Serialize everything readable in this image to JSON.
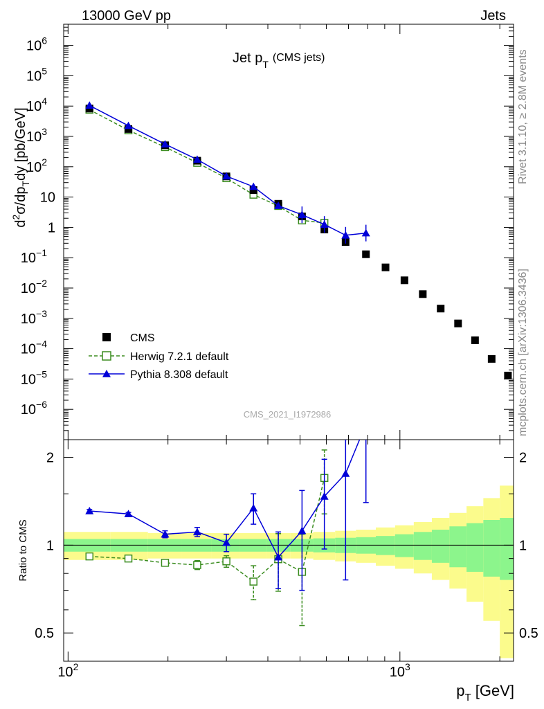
{
  "header": {
    "left": "13000 GeV pp",
    "right": "Jets"
  },
  "side_labels": {
    "rivet": "Rivet 3.1.10, ≥ 2.8M events",
    "mcplots": "mcplots.cern.ch [arXiv:1306.3436]"
  },
  "plot_title": {
    "main": "Jet p",
    "sub": "T",
    "suffix": "(CMS jets)"
  },
  "watermark": "CMS_2021_I1972986",
  "ylabel_main": "d²σ/dp_T dy [pb/GeV]",
  "ylabel_ratio": "Ratio to CMS",
  "xlabel": "p_T [GeV]",
  "colors": {
    "cms": "#000000",
    "herwig": "#3a8c1f",
    "pythia": "#0000d8",
    "band_inner": "#8cf58c",
    "band_outer": "#fbfb8c"
  },
  "chart_data": {
    "type": "scatter",
    "x_scale": "log",
    "y_scale": "log",
    "xlim": [
      97,
      2200
    ],
    "ylim": [
      1e-07,
      5000000.0
    ],
    "ratio_ylim": [
      0.4,
      2.3
    ],
    "x_ticks": [
      {
        "value": 100,
        "label": "10²"
      },
      {
        "value": 1000,
        "label": "10³"
      }
    ],
    "y_ticks": [
      {
        "value": 1000000.0,
        "base": "10",
        "exp": "6"
      },
      {
        "value": 100000.0,
        "base": "10",
        "exp": "5"
      },
      {
        "value": 10000.0,
        "base": "10",
        "exp": "4"
      },
      {
        "value": 1000.0,
        "base": "10",
        "exp": "3"
      },
      {
        "value": 100,
        "base": "10",
        "exp": "2"
      },
      {
        "value": 10,
        "base": "10",
        "exp": ""
      },
      {
        "value": 1,
        "base": "1",
        "exp": ""
      },
      {
        "value": 0.1,
        "base": "10",
        "exp": "−1"
      },
      {
        "value": 0.01,
        "base": "10",
        "exp": "−2"
      },
      {
        "value": 0.001,
        "base": "10",
        "exp": "−3"
      },
      {
        "value": 0.0001,
        "base": "10",
        "exp": "−4"
      },
      {
        "value": 1e-05,
        "base": "10",
        "exp": "−5"
      },
      {
        "value": 1e-06,
        "base": "10",
        "exp": "−6"
      }
    ],
    "ratio_ticks": [
      {
        "value": 2,
        "label": "2"
      },
      {
        "value": 1,
        "label": "1"
      },
      {
        "value": 0.5,
        "label": "0.5"
      }
    ],
    "legend": [
      {
        "name": "CMS",
        "style": "square"
      },
      {
        "name": "Herwig 7.2.1 default",
        "style": "open-square-dashed"
      },
      {
        "name": "Pythia 8.308 default",
        "style": "triangle-solid"
      }
    ],
    "legend_position": "bottom-left",
    "cms": {
      "x": [
        116,
        152,
        196,
        245,
        300,
        362,
        430,
        507,
        592,
        686,
        790,
        905,
        1032,
        1172,
        1327,
        1497,
        1684,
        1890,
        2116
      ],
      "y": [
        8300,
        1750,
        510,
        158,
        48,
        17,
        6,
        2.3,
        0.85,
        0.33,
        0.13,
        0.048,
        0.018,
        0.0063,
        0.0021,
        0.00068,
        0.00019,
        4.6e-05,
        1.3e-05
      ]
    },
    "herwig": {
      "x": [
        116,
        152,
        196,
        245,
        300,
        362,
        430,
        507,
        592
      ],
      "y": [
        7600,
        1600,
        445,
        135,
        42,
        12,
        5.1,
        1.7,
        1.4
      ]
    },
    "pythia": {
      "x": [
        116,
        152,
        196,
        245,
        300,
        362,
        430,
        507,
        592,
        686,
        790
      ],
      "y": [
        10500,
        2250,
        555,
        173,
        48.8,
        22,
        5.2,
        2.6,
        1.25,
        0.55,
        0.65
      ]
    },
    "ratio_herwig": {
      "x": [
        116,
        152,
        196,
        245,
        300,
        362,
        430,
        507,
        592
      ],
      "y": [
        0.915,
        0.9,
        0.87,
        0.855,
        0.88,
        0.75,
        0.895,
        0.81,
        1.7
      ],
      "err": [
        0.01,
        0.01,
        0.015,
        0.03,
        0.04,
        0.1,
        0.2,
        0.28,
        0.42
      ]
    },
    "ratio_pythia": {
      "x": [
        116,
        152,
        196,
        245,
        300,
        362,
        430,
        507,
        592,
        686,
        790
      ],
      "y": [
        1.31,
        1.28,
        1.09,
        1.11,
        1.02,
        1.34,
        0.91,
        1.12,
        1.47,
        1.76,
        2.6
      ],
      "err": [
        0.015,
        0.015,
        0.03,
        0.04,
        0.07,
        0.16,
        0.2,
        0.42,
        0.5,
        1.0,
        1.2
      ]
    },
    "band_edges": [
      97,
      134,
      174,
      220,
      271,
      330,
      395,
      468,
      548,
      638,
      737,
      846,
      967,
      1101,
      1248,
      1410,
      1588,
      1784,
      2000,
      2200
    ],
    "band_inner": [
      0.05,
      0.05,
      0.05,
      0.05,
      0.05,
      0.05,
      0.05,
      0.05,
      0.055,
      0.06,
      0.065,
      0.075,
      0.09,
      0.11,
      0.13,
      0.16,
      0.19,
      0.22,
      0.24
    ],
    "band_outer": [
      0.11,
      0.11,
      0.1,
      0.1,
      0.1,
      0.1,
      0.1,
      0.1,
      0.11,
      0.12,
      0.13,
      0.15,
      0.17,
      0.2,
      0.24,
      0.29,
      0.36,
      0.45,
      0.6
    ]
  }
}
